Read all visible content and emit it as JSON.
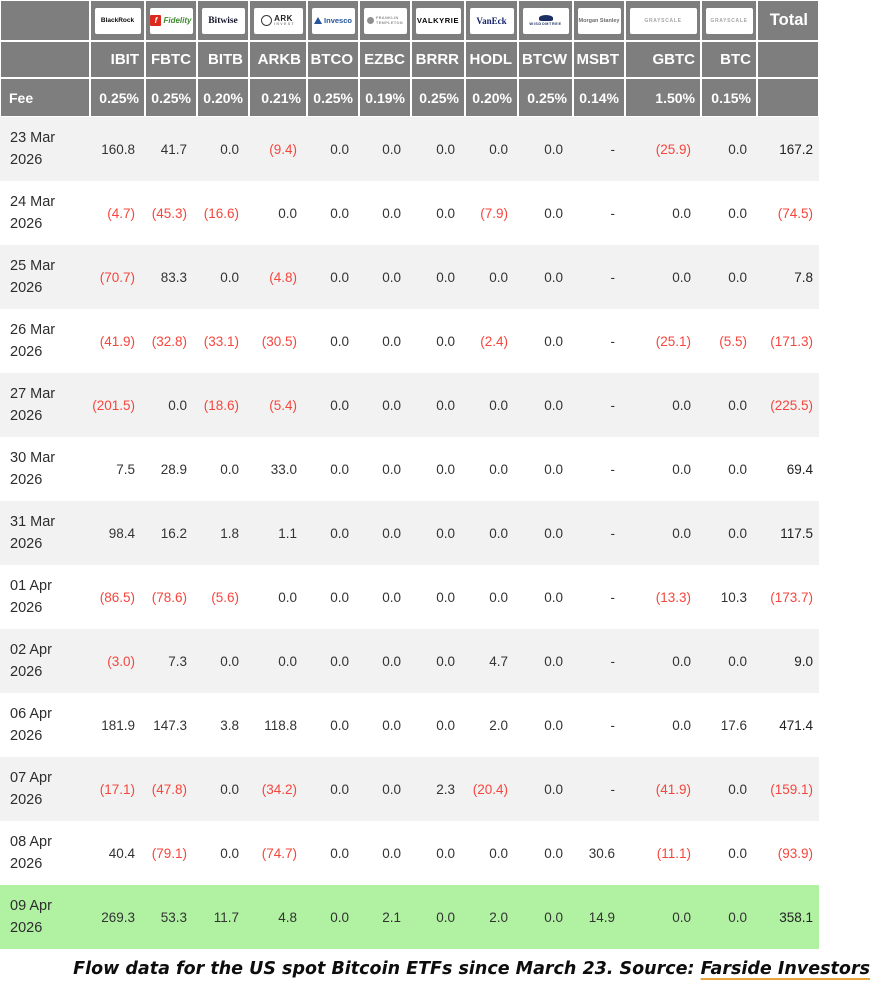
{
  "chart_data": {
    "type": "table",
    "fee_label": "Fee",
    "total_label": "Total",
    "columns": [
      {
        "issuer": "BlackRock",
        "logo_style": "blackrock",
        "logo_text": "BlackRock",
        "ticker": "IBIT",
        "fee": "0.25%"
      },
      {
        "issuer": "Fidelity",
        "logo_style": "fidelity",
        "logo_icon": "f",
        "logo_text": "Fidelity",
        "ticker": "FBTC",
        "fee": "0.25%"
      },
      {
        "issuer": "Bitwise",
        "logo_style": "bitwise",
        "logo_text": "Bitwise",
        "ticker": "BITB",
        "fee": "0.20%"
      },
      {
        "issuer": "ARK Invest",
        "logo_style": "ark",
        "logo_text": "ARK",
        "logo_subtext": "INVEST",
        "ticker": "ARKB",
        "fee": "0.21%"
      },
      {
        "issuer": "Invesco",
        "logo_style": "invesco",
        "logo_text": "Invesco",
        "ticker": "BTCO",
        "fee": "0.25%"
      },
      {
        "issuer": "Franklin Templeton",
        "logo_style": "franklin",
        "logo_text": "FRANKLIN",
        "logo_subtext": "TEMPLETON",
        "ticker": "EZBC",
        "fee": "0.19%"
      },
      {
        "issuer": "Valkyrie",
        "logo_style": "valkyrie",
        "logo_text": "VALKYRIE",
        "ticker": "BRRR",
        "fee": "0.25%"
      },
      {
        "issuer": "VanEck",
        "logo_style": "vaneck",
        "logo_text": "VanEck",
        "ticker": "HODL",
        "fee": "0.20%"
      },
      {
        "issuer": "WisdomTree",
        "logo_style": "wisdomtree",
        "logo_text": "WISDOMTREE",
        "ticker": "BTCW",
        "fee": "0.25%"
      },
      {
        "issuer": "Morgan Stanley",
        "logo_style": "morganstanley",
        "logo_text": "Morgan Stanley",
        "ticker": "MSBT",
        "fee": "0.14%"
      },
      {
        "issuer": "Grayscale",
        "logo_style": "grayscale",
        "logo_text": "GRAYSCALE",
        "ticker": "GBTC",
        "fee": "1.50%"
      },
      {
        "issuer": "Grayscale",
        "logo_style": "grayscale",
        "logo_text": "GRAYSCALE",
        "ticker": "BTC",
        "fee": "0.15%"
      }
    ],
    "rows": [
      {
        "date": [
          "23 Mar",
          "2026"
        ],
        "values": [
          "160.8",
          "41.7",
          "0.0",
          "(9.4)",
          "0.0",
          "0.0",
          "0.0",
          "0.0",
          "0.0",
          "-",
          "(25.9)",
          "0.0"
        ],
        "total": "167.2",
        "highlight": false
      },
      {
        "date": [
          "24 Mar",
          "2026"
        ],
        "values": [
          "(4.7)",
          "(45.3)",
          "(16.6)",
          "0.0",
          "0.0",
          "0.0",
          "0.0",
          "(7.9)",
          "0.0",
          "-",
          "0.0",
          "0.0"
        ],
        "total": "(74.5)",
        "highlight": false
      },
      {
        "date": [
          "25 Mar",
          "2026"
        ],
        "values": [
          "(70.7)",
          "83.3",
          "0.0",
          "(4.8)",
          "0.0",
          "0.0",
          "0.0",
          "0.0",
          "0.0",
          "-",
          "0.0",
          "0.0"
        ],
        "total": "7.8",
        "highlight": false
      },
      {
        "date": [
          "26 Mar",
          "2026"
        ],
        "values": [
          "(41.9)",
          "(32.8)",
          "(33.1)",
          "(30.5)",
          "0.0",
          "0.0",
          "0.0",
          "(2.4)",
          "0.0",
          "-",
          "(25.1)",
          "(5.5)"
        ],
        "total": "(171.3)",
        "highlight": false
      },
      {
        "date": [
          "27 Mar",
          "2026"
        ],
        "values": [
          "(201.5)",
          "0.0",
          "(18.6)",
          "(5.4)",
          "0.0",
          "0.0",
          "0.0",
          "0.0",
          "0.0",
          "-",
          "0.0",
          "0.0"
        ],
        "total": "(225.5)",
        "highlight": false
      },
      {
        "date": [
          "30 Mar",
          "2026"
        ],
        "values": [
          "7.5",
          "28.9",
          "0.0",
          "33.0",
          "0.0",
          "0.0",
          "0.0",
          "0.0",
          "0.0",
          "-",
          "0.0",
          "0.0"
        ],
        "total": "69.4",
        "highlight": false
      },
      {
        "date": [
          "31 Mar",
          "2026"
        ],
        "values": [
          "98.4",
          "16.2",
          "1.8",
          "1.1",
          "0.0",
          "0.0",
          "0.0",
          "0.0",
          "0.0",
          "-",
          "0.0",
          "0.0"
        ],
        "total": "117.5",
        "highlight": false
      },
      {
        "date": [
          "01 Apr",
          "2026"
        ],
        "values": [
          "(86.5)",
          "(78.6)",
          "(5.6)",
          "0.0",
          "0.0",
          "0.0",
          "0.0",
          "0.0",
          "0.0",
          "-",
          "(13.3)",
          "10.3"
        ],
        "total": "(173.7)",
        "highlight": false
      },
      {
        "date": [
          "02 Apr",
          "2026"
        ],
        "values": [
          "(3.0)",
          "7.3",
          "0.0",
          "0.0",
          "0.0",
          "0.0",
          "0.0",
          "4.7",
          "0.0",
          "-",
          "0.0",
          "0.0"
        ],
        "total": "9.0",
        "highlight": false
      },
      {
        "date": [
          "06 Apr",
          "2026"
        ],
        "values": [
          "181.9",
          "147.3",
          "3.8",
          "118.8",
          "0.0",
          "0.0",
          "0.0",
          "2.0",
          "0.0",
          "-",
          "0.0",
          "17.6"
        ],
        "total": "471.4",
        "highlight": false
      },
      {
        "date": [
          "07 Apr",
          "2026"
        ],
        "values": [
          "(17.1)",
          "(47.8)",
          "0.0",
          "(34.2)",
          "0.0",
          "0.0",
          "2.3",
          "(20.4)",
          "0.0",
          "-",
          "(41.9)",
          "0.0"
        ],
        "total": "(159.1)",
        "highlight": false
      },
      {
        "date": [
          "08 Apr",
          "2026"
        ],
        "values": [
          "40.4",
          "(79.1)",
          "0.0",
          "(74.7)",
          "0.0",
          "0.0",
          "0.0",
          "0.0",
          "0.0",
          "30.6",
          "(11.1)",
          "0.0"
        ],
        "total": "(93.9)",
        "highlight": false
      },
      {
        "date": [
          "09 Apr",
          "2026"
        ],
        "values": [
          "269.3",
          "53.3",
          "11.7",
          "4.8",
          "0.0",
          "2.1",
          "0.0",
          "2.0",
          "0.0",
          "14.9",
          "0.0",
          "0.0"
        ],
        "total": "358.1",
        "highlight": true
      }
    ]
  },
  "caption": {
    "text": "Flow data for the US spot Bitcoin ETFs since March 23. Source: ",
    "link_text": "Farside Investors"
  },
  "colors": {
    "header_bg": "#7e7e7e",
    "row_alt_bg": "#f2f2f3",
    "highlight_bg": "#b1f1a2",
    "negative": "#f5463c",
    "positive_text": "#333333",
    "link_underline": "#e8a33d"
  }
}
